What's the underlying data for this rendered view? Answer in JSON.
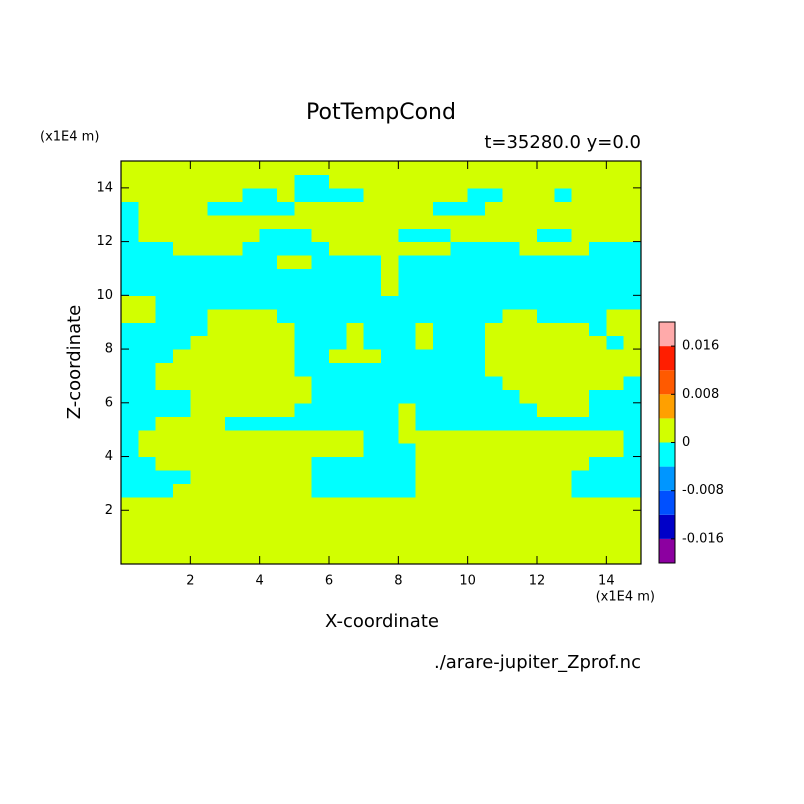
{
  "chart_data": {
    "type": "contourf",
    "title": "PotTempCond",
    "subtitle": "t=35280.0 y=0.0",
    "x_label": "X-coordinate",
    "y_label": "Z-coordinate",
    "x_unit": "(x1E4 m)",
    "y_unit": "(x1E4 m)",
    "source": "./arare-jupiter_Zprof.nc",
    "xlim": [
      0,
      15
    ],
    "ylim": [
      0,
      15
    ],
    "xticks": [
      2,
      4,
      6,
      8,
      10,
      12,
      14
    ],
    "yticks": [
      2,
      4,
      6,
      8,
      10,
      12,
      14
    ],
    "levels": [
      -0.02,
      -0.016,
      -0.012,
      -0.008,
      -0.004,
      0,
      0.004,
      0.008,
      0.012,
      0.016,
      0.02
    ],
    "colors": [
      "#8c00a0",
      "#0000c8",
      "#0050ff",
      "#0096ff",
      "#00ffff",
      "#d2ff00",
      "#ffa000",
      "#ff5a00",
      "#ff1e00",
      "#ffaaaa"
    ],
    "colorbar_ticks": [
      -0.016,
      -0.008,
      0,
      0.008,
      0.016
    ],
    "x": [
      0.25,
      0.75,
      1.25,
      1.75,
      2.25,
      2.75,
      3.25,
      3.75,
      4.25,
      4.75,
      5.25,
      5.75,
      6.25,
      6.75,
      7.25,
      7.75,
      8.25,
      8.75,
      9.25,
      9.75,
      10.25,
      10.75,
      11.25,
      11.75,
      12.25,
      12.75,
      13.25,
      13.75,
      14.25,
      14.75
    ],
    "y": [
      0.25,
      0.75,
      1.25,
      1.75,
      2.25,
      2.75,
      3.25,
      3.75,
      4.25,
      4.75,
      5.25,
      5.75,
      6.25,
      6.75,
      7.25,
      7.75,
      8.25,
      8.75,
      9.25,
      9.75,
      10.25,
      10.75,
      11.25,
      11.75,
      12.25,
      12.75,
      13.25,
      13.75,
      14.25,
      14.75
    ],
    "z": [
      [
        0.002,
        0.002,
        0.002,
        0.002,
        0.002,
        0.002,
        0.002,
        0.002,
        0.002,
        0.002,
        0.002,
        0.002,
        0.002,
        0.002,
        0.002,
        0.002,
        0.002,
        0.002,
        0.002,
        0.002,
        0.002,
        0.002,
        0.002,
        0.002,
        0.002,
        0.002,
        0.002,
        0.002,
        0.002,
        0.002
      ],
      [
        0.002,
        0.002,
        0.002,
        0.002,
        0.002,
        0.002,
        0.002,
        0.002,
        0.002,
        0.002,
        0.002,
        0.002,
        0.002,
        0.002,
        0.002,
        0.002,
        0.002,
        0.002,
        0.002,
        0.002,
        0.002,
        0.002,
        0.002,
        0.002,
        0.002,
        0.002,
        0.002,
        0.002,
        0.002,
        0.002
      ],
      [
        0.002,
        0.002,
        0.002,
        0.002,
        0.002,
        0.002,
        0.002,
        0.002,
        0.002,
        0.002,
        0.002,
        0.002,
        0.002,
        0.002,
        0.002,
        0.002,
        0.002,
        0.002,
        0.002,
        0.002,
        0.002,
        0.002,
        0.002,
        0.002,
        0.002,
        0.002,
        0.002,
        0.002,
        0.002,
        0.002
      ],
      [
        0.002,
        0.002,
        0.002,
        0.002,
        0.002,
        0.002,
        0.002,
        0.002,
        0.002,
        0.002,
        0.002,
        0.002,
        0.002,
        0.002,
        0.002,
        0.002,
        0.002,
        0.002,
        0.002,
        0.002,
        0.002,
        0.002,
        0.002,
        0.002,
        0.002,
        0.002,
        0.002,
        0.002,
        0.002,
        0.002
      ],
      [
        0.002,
        0.002,
        0.002,
        0.002,
        0.002,
        0.002,
        0.002,
        0.002,
        0.002,
        0.002,
        0.002,
        0.002,
        0.002,
        0.002,
        0.002,
        0.002,
        0.002,
        0.002,
        0.002,
        0.002,
        0.002,
        0.002,
        0.002,
        0.002,
        0.002,
        0.002,
        0.002,
        0.002,
        0.002,
        0.002
      ],
      [
        -0.002,
        -0.002,
        -0.002,
        0.002,
        0.002,
        0.002,
        0.002,
        0.002,
        0.002,
        0.002,
        0.002,
        -0.002,
        -0.002,
        -0.002,
        -0.002,
        -0.002,
        -0.002,
        0.002,
        0.002,
        0.002,
        0.002,
        0.002,
        0.002,
        0.002,
        0.002,
        0.002,
        -0.002,
        -0.002,
        -0.002,
        -0.002
      ],
      [
        -0.002,
        -0.002,
        -0.002,
        -0.002,
        0.002,
        0.002,
        0.002,
        0.002,
        0.002,
        0.002,
        0.002,
        -0.002,
        -0.002,
        -0.002,
        -0.002,
        -0.002,
        -0.002,
        0.002,
        0.002,
        0.002,
        0.002,
        0.002,
        0.002,
        0.002,
        0.002,
        0.002,
        -0.002,
        -0.002,
        -0.002,
        -0.002
      ],
      [
        -0.002,
        -0.002,
        0.002,
        0.002,
        0.002,
        0.002,
        0.002,
        0.002,
        0.002,
        0.002,
        0.002,
        -0.002,
        -0.002,
        -0.002,
        -0.002,
        -0.002,
        -0.002,
        0.002,
        0.002,
        0.002,
        0.002,
        0.002,
        0.002,
        0.002,
        0.002,
        0.002,
        0.002,
        -0.002,
        -0.002,
        -0.002
      ],
      [
        -0.002,
        0.002,
        0.002,
        0.002,
        0.002,
        0.002,
        0.002,
        0.002,
        0.002,
        0.002,
        0.002,
        0.002,
        0.002,
        0.002,
        -0.002,
        -0.002,
        -0.002,
        0.002,
        0.002,
        0.002,
        0.002,
        0.002,
        0.002,
        0.002,
        0.002,
        0.002,
        0.002,
        0.002,
        0.002,
        -0.002
      ],
      [
        -0.002,
        0.002,
        0.002,
        0.002,
        0.002,
        0.002,
        0.002,
        0.002,
        0.002,
        0.002,
        0.002,
        0.002,
        0.002,
        0.002,
        -0.002,
        -0.002,
        0.002,
        0.002,
        0.002,
        0.002,
        0.002,
        0.002,
        0.002,
        0.002,
        0.002,
        0.002,
        0.002,
        0.002,
        0.002,
        -0.002
      ],
      [
        -0.002,
        -0.002,
        0.002,
        0.002,
        0.002,
        0.002,
        -0.002,
        -0.002,
        -0.002,
        -0.002,
        -0.002,
        -0.002,
        -0.002,
        -0.002,
        -0.002,
        -0.002,
        0.002,
        -0.002,
        -0.002,
        -0.002,
        -0.002,
        -0.002,
        -0.002,
        -0.002,
        -0.002,
        -0.002,
        -0.002,
        -0.002,
        -0.002,
        -0.002
      ],
      [
        -0.002,
        -0.002,
        -0.002,
        -0.002,
        0.002,
        0.002,
        0.002,
        0.002,
        0.002,
        0.002,
        -0.002,
        -0.002,
        -0.002,
        -0.002,
        -0.002,
        -0.002,
        0.002,
        -0.002,
        -0.002,
        -0.002,
        -0.002,
        -0.002,
        -0.002,
        -0.002,
        0.002,
        0.002,
        0.002,
        -0.002,
        -0.002,
        -0.002
      ],
      [
        -0.002,
        -0.002,
        -0.002,
        -0.002,
        0.002,
        0.002,
        0.002,
        0.002,
        0.002,
        0.002,
        0.002,
        -0.002,
        -0.002,
        -0.002,
        -0.002,
        -0.002,
        -0.002,
        -0.002,
        -0.002,
        -0.002,
        -0.002,
        -0.002,
        -0.002,
        0.002,
        0.002,
        0.002,
        0.002,
        -0.002,
        -0.002,
        -0.002
      ],
      [
        -0.002,
        -0.002,
        0.002,
        0.002,
        0.002,
        0.002,
        0.002,
        0.002,
        0.002,
        0.002,
        0.002,
        -0.002,
        -0.002,
        -0.002,
        -0.002,
        -0.002,
        -0.002,
        -0.002,
        -0.002,
        -0.002,
        -0.002,
        -0.002,
        0.002,
        0.002,
        0.002,
        0.002,
        0.002,
        0.002,
        0.002,
        -0.002
      ],
      [
        -0.002,
        -0.002,
        0.002,
        0.002,
        0.002,
        0.002,
        0.002,
        0.002,
        0.002,
        0.002,
        -0.002,
        -0.002,
        -0.002,
        -0.002,
        -0.002,
        -0.002,
        -0.002,
        -0.002,
        -0.002,
        -0.002,
        -0.002,
        0.002,
        0.002,
        0.002,
        0.002,
        0.002,
        0.002,
        0.002,
        0.002,
        0.002
      ],
      [
        -0.002,
        -0.002,
        -0.002,
        0.002,
        0.002,
        0.002,
        0.002,
        0.002,
        0.002,
        0.002,
        -0.002,
        -0.002,
        0.002,
        0.002,
        0.002,
        -0.002,
        -0.002,
        -0.002,
        -0.002,
        -0.002,
        -0.002,
        0.002,
        0.002,
        0.002,
        0.002,
        0.002,
        0.002,
        0.002,
        0.002,
        0.002
      ],
      [
        -0.002,
        -0.002,
        -0.002,
        -0.002,
        0.002,
        0.002,
        0.002,
        0.002,
        0.002,
        0.002,
        -0.002,
        -0.002,
        -0.002,
        0.002,
        -0.002,
        -0.002,
        -0.002,
        0.002,
        -0.002,
        -0.002,
        -0.002,
        0.002,
        0.002,
        0.002,
        0.002,
        0.002,
        0.002,
        0.002,
        -0.002,
        0.002
      ],
      [
        -0.002,
        -0.002,
        -0.002,
        -0.002,
        -0.002,
        0.002,
        0.002,
        0.002,
        0.002,
        0.002,
        -0.002,
        -0.002,
        -0.002,
        0.002,
        -0.002,
        -0.002,
        -0.002,
        0.002,
        -0.002,
        -0.002,
        -0.002,
        0.002,
        0.002,
        0.002,
        0.002,
        0.002,
        0.002,
        -0.002,
        0.002,
        0.002
      ],
      [
        0.002,
        0.002,
        -0.002,
        -0.002,
        -0.002,
        0.002,
        0.002,
        0.002,
        0.002,
        -0.002,
        -0.002,
        -0.002,
        -0.002,
        -0.002,
        -0.002,
        -0.002,
        -0.002,
        -0.002,
        -0.002,
        -0.002,
        -0.002,
        -0.002,
        0.002,
        0.002,
        -0.002,
        -0.002,
        -0.002,
        -0.002,
        0.002,
        0.002
      ],
      [
        0.002,
        0.002,
        -0.002,
        -0.002,
        -0.002,
        -0.002,
        -0.002,
        -0.002,
        -0.002,
        -0.002,
        -0.002,
        -0.002,
        -0.002,
        -0.002,
        -0.002,
        -0.002,
        -0.002,
        -0.002,
        -0.002,
        -0.002,
        -0.002,
        -0.002,
        -0.002,
        -0.002,
        -0.002,
        -0.002,
        -0.002,
        -0.002,
        -0.002,
        -0.002
      ],
      [
        -0.002,
        -0.002,
        -0.002,
        -0.002,
        -0.002,
        -0.002,
        -0.002,
        -0.002,
        -0.002,
        -0.002,
        -0.002,
        -0.002,
        -0.002,
        -0.002,
        -0.002,
        0.002,
        -0.002,
        -0.002,
        -0.002,
        -0.002,
        -0.002,
        -0.002,
        -0.002,
        -0.002,
        -0.002,
        -0.002,
        -0.002,
        -0.002,
        -0.002,
        -0.002
      ],
      [
        -0.002,
        -0.002,
        -0.002,
        -0.002,
        -0.002,
        -0.002,
        -0.002,
        -0.002,
        -0.002,
        -0.002,
        -0.002,
        -0.002,
        -0.002,
        -0.002,
        -0.002,
        0.002,
        -0.002,
        -0.002,
        -0.002,
        -0.002,
        -0.002,
        -0.002,
        -0.002,
        -0.002,
        -0.002,
        -0.002,
        -0.002,
        -0.002,
        -0.002,
        -0.002
      ],
      [
        -0.002,
        -0.002,
        -0.002,
        -0.002,
        -0.002,
        -0.002,
        -0.002,
        -0.002,
        -0.002,
        0.002,
        0.002,
        -0.002,
        -0.002,
        -0.002,
        -0.002,
        0.002,
        -0.002,
        -0.002,
        -0.002,
        -0.002,
        -0.002,
        -0.002,
        -0.002,
        -0.002,
        -0.002,
        -0.002,
        -0.002,
        -0.002,
        -0.002,
        -0.002
      ],
      [
        -0.002,
        -0.002,
        -0.002,
        0.002,
        0.002,
        0.002,
        0.002,
        -0.002,
        -0.002,
        -0.002,
        -0.002,
        -0.002,
        0.002,
        0.002,
        0.002,
        0.002,
        0.002,
        0.002,
        0.002,
        -0.002,
        -0.002,
        -0.002,
        -0.002,
        0.002,
        0.002,
        0.002,
        0.002,
        -0.002,
        -0.002,
        -0.002
      ],
      [
        -0.002,
        0.002,
        0.002,
        0.002,
        0.002,
        0.002,
        0.002,
        0.002,
        -0.002,
        -0.002,
        -0.002,
        0.002,
        0.002,
        0.002,
        0.002,
        0.002,
        -0.002,
        -0.002,
        -0.002,
        0.002,
        0.002,
        0.002,
        0.002,
        0.002,
        -0.002,
        -0.002,
        0.002,
        0.002,
        0.002,
        0.002
      ],
      [
        -0.002,
        0.002,
        0.002,
        0.002,
        0.002,
        0.002,
        0.002,
        0.002,
        0.002,
        0.002,
        0.002,
        0.002,
        0.002,
        0.002,
        0.002,
        0.002,
        0.002,
        0.002,
        0.002,
        0.002,
        0.002,
        0.002,
        0.002,
        0.002,
        0.002,
        0.002,
        0.002,
        0.002,
        0.002,
        0.002
      ],
      [
        -0.002,
        0.002,
        0.002,
        0.002,
        0.002,
        -0.002,
        -0.002,
        -0.002,
        -0.002,
        -0.002,
        0.002,
        0.002,
        0.002,
        0.002,
        0.002,
        0.002,
        0.002,
        0.002,
        -0.002,
        -0.002,
        -0.002,
        0.002,
        0.002,
        0.002,
        0.002,
        0.002,
        0.002,
        0.002,
        0.002,
        0.002
      ],
      [
        0.002,
        0.002,
        0.002,
        0.002,
        0.002,
        0.002,
        0.002,
        -0.002,
        -0.002,
        0.002,
        -0.002,
        -0.002,
        -0.002,
        -0.002,
        0.002,
        0.002,
        0.002,
        0.002,
        0.002,
        0.002,
        -0.002,
        -0.002,
        0.002,
        0.002,
        0.002,
        -0.002,
        0.002,
        0.002,
        0.002,
        0.002
      ],
      [
        0.002,
        0.002,
        0.002,
        0.002,
        0.002,
        0.002,
        0.002,
        0.002,
        0.002,
        0.002,
        -0.002,
        -0.002,
        0.002,
        0.002,
        0.002,
        0.002,
        0.002,
        0.002,
        0.002,
        0.002,
        0.002,
        0.002,
        0.002,
        0.002,
        0.002,
        0.002,
        0.002,
        0.002,
        0.002,
        0.002
      ],
      [
        0.002,
        0.002,
        0.002,
        0.002,
        0.002,
        0.002,
        0.002,
        0.002,
        0.002,
        0.002,
        0.002,
        0.002,
        0.002,
        0.002,
        0.002,
        0.002,
        0.002,
        0.002,
        0.002,
        0.002,
        0.002,
        0.002,
        0.002,
        0.002,
        0.002,
        0.002,
        0.002,
        0.002,
        0.002,
        0.002
      ]
    ]
  }
}
